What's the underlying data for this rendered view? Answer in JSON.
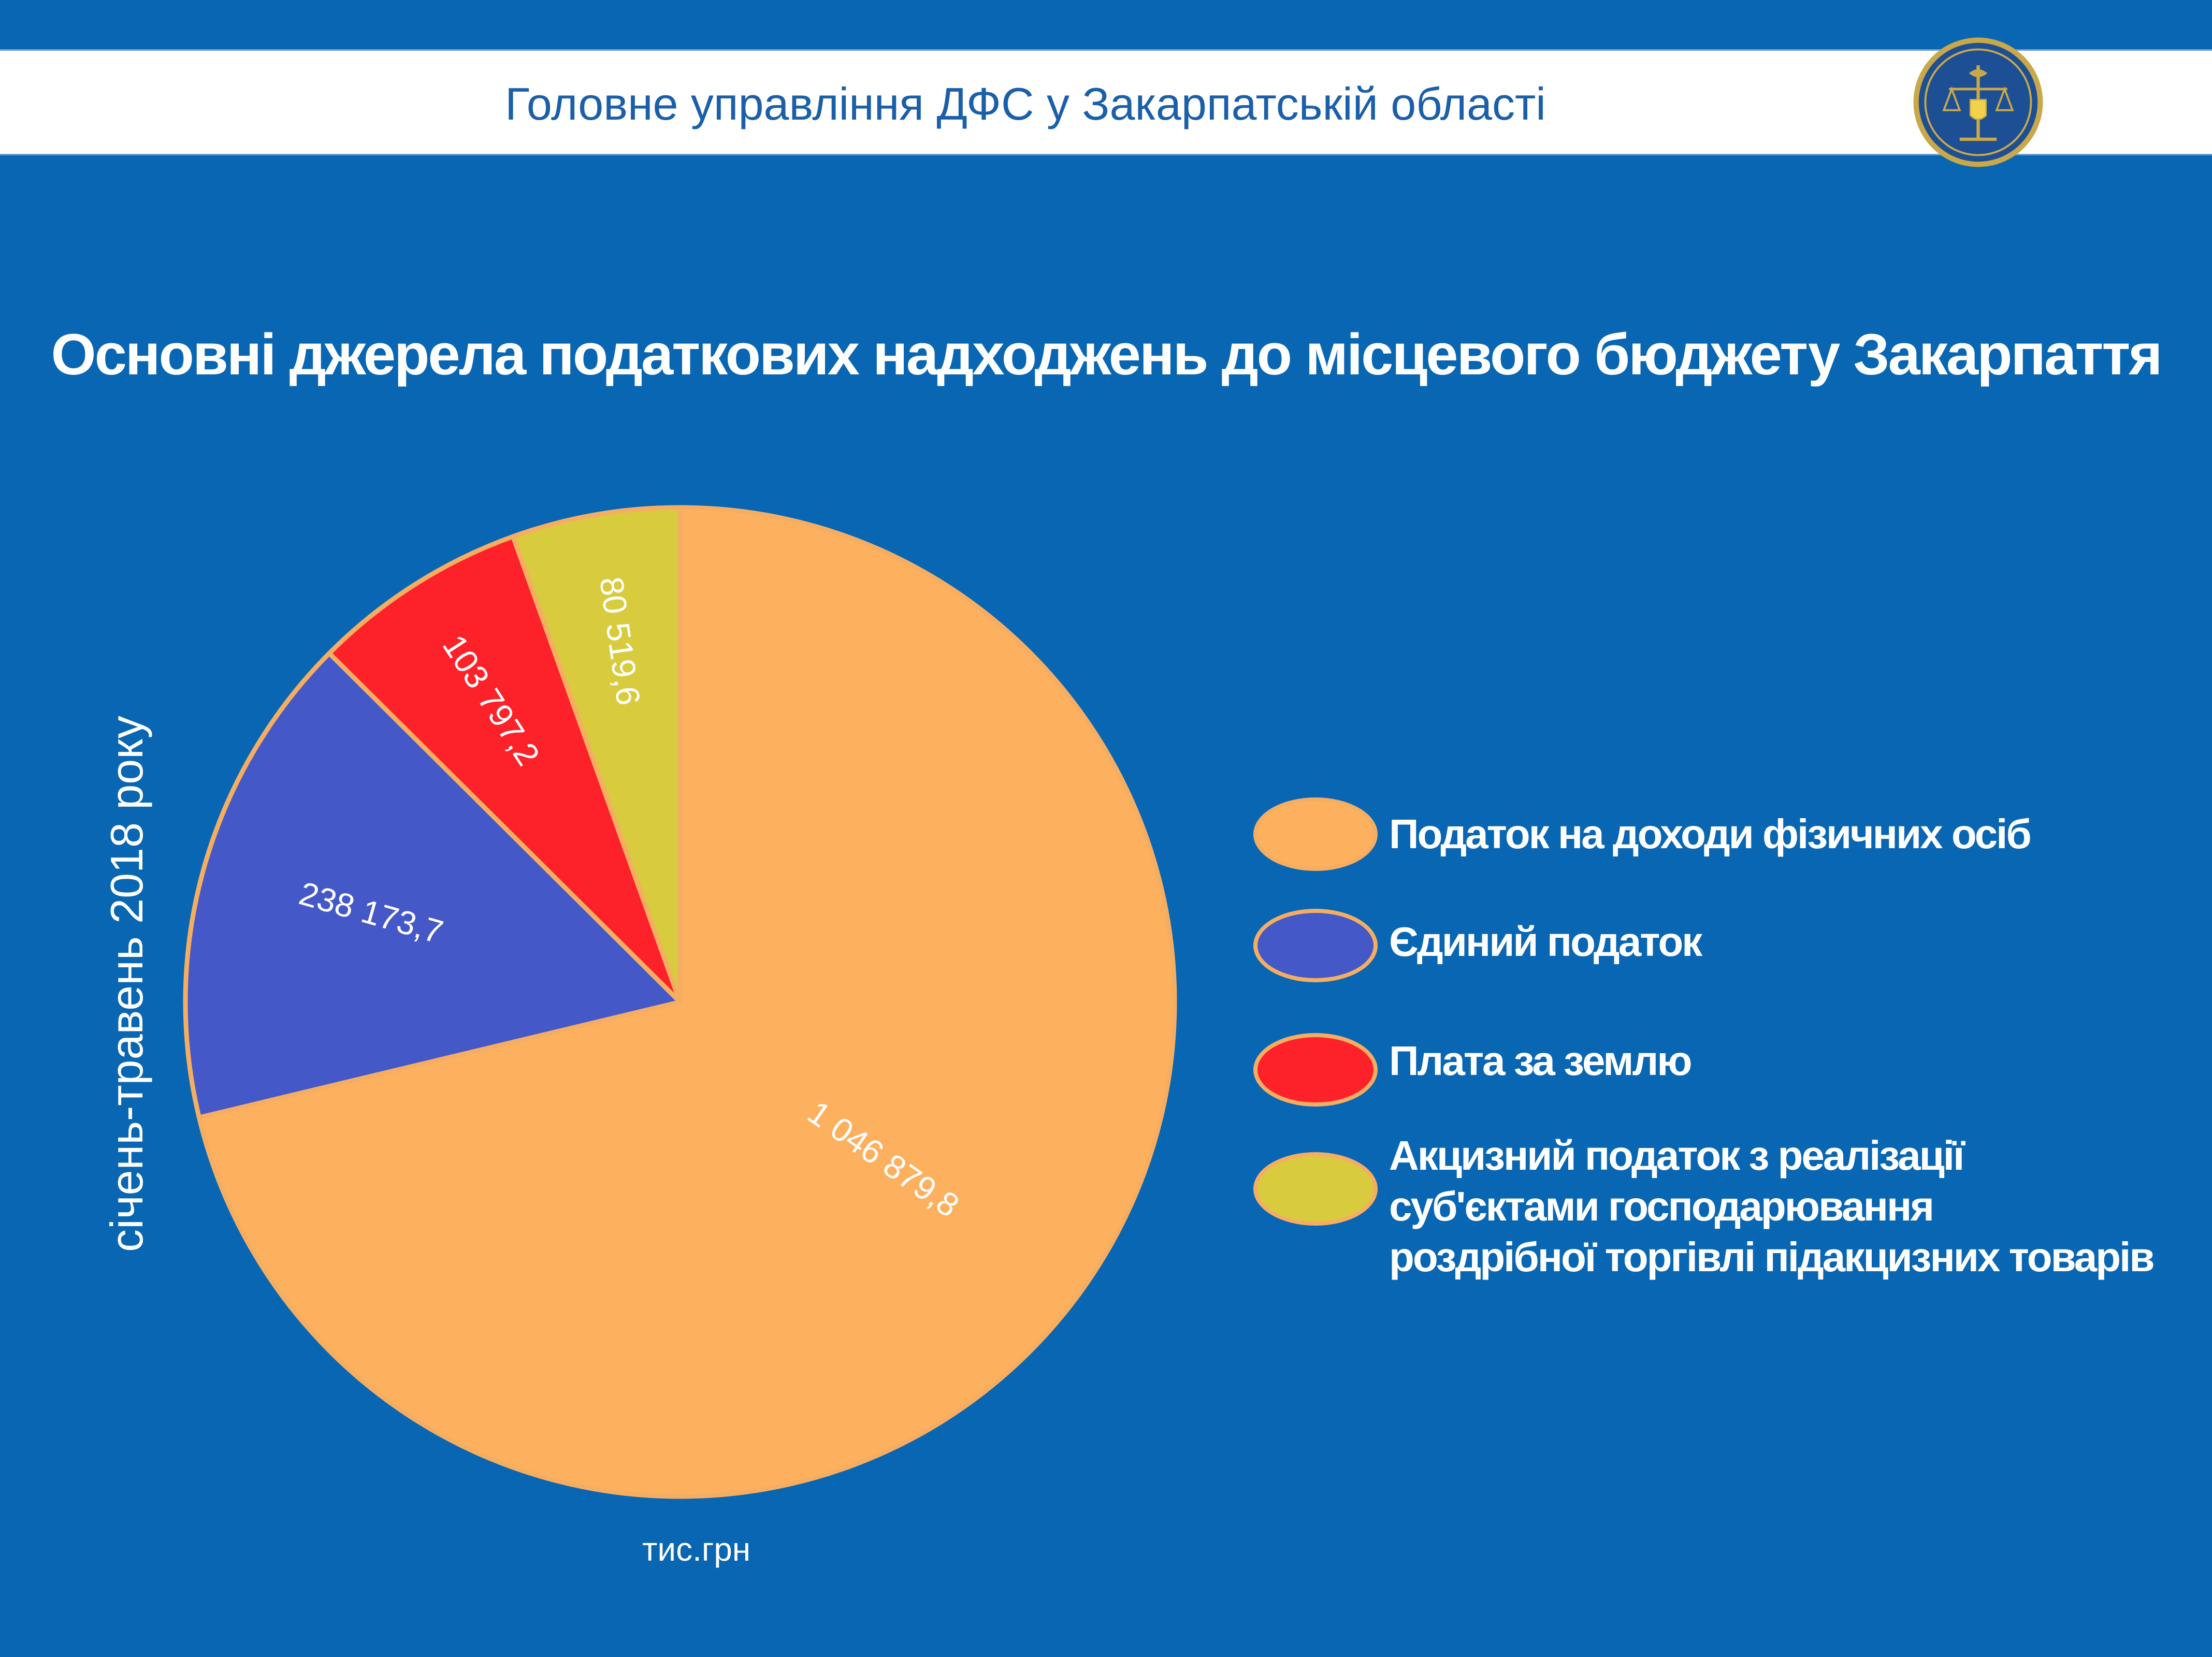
{
  "header": {
    "title": "Головне управління ДФС у Закарпатській області"
  },
  "side_label": "січень-травень 2018 року",
  "unit_label": "тис.грн",
  "chart_data": {
    "type": "pie",
    "title": "Основні джерела податкових надходжень до місцевого бюджету Закарпаття",
    "slices": [
      {
        "label": "Податок на доходи фізичних осіб",
        "value": 1046879.8,
        "value_label": "1 046 879,8",
        "color": "#fdb15f"
      },
      {
        "label": "Єдиний податок",
        "value": 238173.7,
        "value_label": "238 173,7",
        "color": "#4558c8"
      },
      {
        "label": "Плата за землю",
        "value": 103797.2,
        "value_label": "103 797,2",
        "color": "#fd2229"
      },
      {
        "label": "Акцизний податок з реалізації суб'єктами господарювання роздрібної торгівлі підакцизних товарів",
        "value": 80519.6,
        "value_label": "80 519,6",
        "color": "#d9cb3e"
      }
    ],
    "start_angle": "12 o'clock",
    "direction": "clockwise",
    "legend_position": "right",
    "legend_lines": [
      [
        "Податок на доходи фізичних осіб"
      ],
      [
        "Єдиний податок"
      ],
      [
        "Плата за землю"
      ],
      [
        "Акцизний податок з реалізації",
        "суб'єктами господарювання",
        "роздрібної торгівлі підакцизних товарів"
      ]
    ],
    "slice_border_color": "#f5ae61"
  }
}
